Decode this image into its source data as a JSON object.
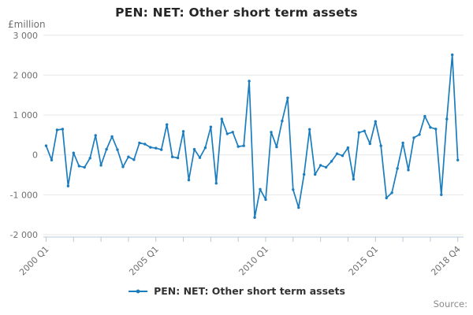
{
  "source_label": "Source:",
  "chart_data": {
    "type": "line",
    "title": "PEN: NET: Other short term assets",
    "unit_label": "£million",
    "xlabel": "",
    "ylabel": "£million",
    "ylim": [
      -2000,
      3000
    ],
    "grid": "horizontal",
    "legend_position": "bottom",
    "y_ticks": [
      3000,
      2000,
      1000,
      0,
      -1000,
      -2000
    ],
    "y_tick_labels": [
      "3 000",
      "2 000",
      "1 000",
      "0",
      "-1 000",
      "-2 000"
    ],
    "x_start": "2000 Q1",
    "x_end": "2018 Q4",
    "x_period": "quarterly",
    "x_point_count": 76,
    "x_tick_every": 5,
    "x_tick_labels": [
      {
        "index": 0,
        "label": "2000 Q1"
      },
      {
        "index": 20,
        "label": "2005 Q1"
      },
      {
        "index": 40,
        "label": "2010 Q1"
      },
      {
        "index": 60,
        "label": "2015 Q1"
      },
      {
        "index": 75,
        "label": "2018 Q4"
      }
    ],
    "series": [
      {
        "name": "PEN: NET: Other short term assets",
        "color": "#1b7dbe",
        "values": [
          230,
          -130,
          625,
          645,
          -780,
          50,
          -280,
          -310,
          -80,
          490,
          -260,
          140,
          460,
          130,
          -300,
          -50,
          -120,
          300,
          270,
          190,
          170,
          130,
          760,
          -50,
          -75,
          590,
          -630,
          140,
          -70,
          180,
          700,
          -710,
          900,
          530,
          570,
          210,
          230,
          1850,
          -1570,
          -860,
          -1120,
          570,
          200,
          850,
          1430,
          -870,
          -1320,
          -490,
          640,
          -490,
          -260,
          -310,
          -160,
          30,
          -20,
          180,
          -610,
          560,
          600,
          280,
          840,
          230,
          -1080,
          -950,
          -340,
          300,
          -380,
          430,
          510,
          970,
          690,
          650,
          -1000,
          900,
          2510,
          -130
        ]
      }
    ],
    "colors": {
      "accent": "#1b7dbe",
      "grid": "#e7e7e7",
      "axis": "#b9c8da",
      "tick_text": "#6f6f6f",
      "title_text": "#262626",
      "legend_text": "#333333",
      "source_text": "#8a8a8a"
    }
  }
}
